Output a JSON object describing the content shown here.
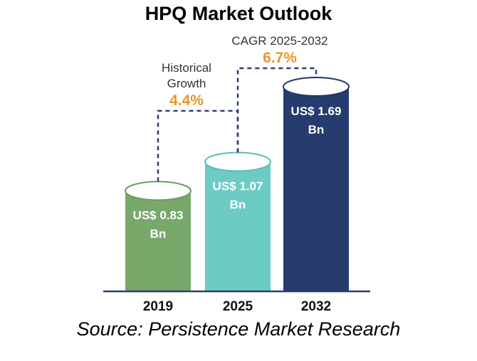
{
  "title": "HPQ Market Outlook",
  "source": "Source: Persistence Market Research",
  "chart_data": {
    "type": "bar",
    "categories": [
      "2019",
      "2025",
      "2032"
    ],
    "values": [
      0.83,
      1.07,
      1.69
    ],
    "value_labels": [
      [
        "US$ 0.83",
        "Bn"
      ],
      [
        "US$ 1.07",
        "Bn"
      ],
      [
        "US$ 1.69",
        "Bn"
      ]
    ],
    "colors": [
      "#78a86a",
      "#6ccbc5",
      "#263b6e"
    ],
    "annotations": [
      {
        "lines": [
          "Historical",
          "Growth"
        ],
        "value": "4.4%",
        "from": "2019",
        "to": "2025"
      },
      {
        "lines": [
          "CAGR 2025-2032"
        ],
        "value": "6.7%",
        "from": "2025",
        "to": "2032"
      }
    ],
    "accent_color": "#e8962a",
    "bar_style": "cylinder",
    "grid": false,
    "legend": "none"
  }
}
